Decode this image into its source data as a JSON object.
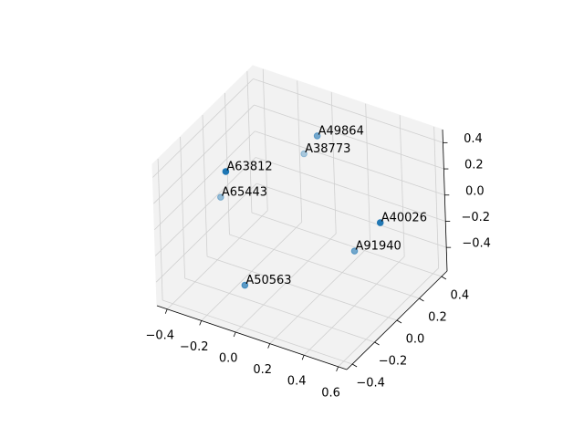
{
  "chart_data": {
    "type": "scatter3d",
    "series": [
      {
        "color": "#1f77b4",
        "labels": [
          "A49864",
          "A38773",
          "A63812",
          "A65443",
          "A40026",
          "A91940",
          "A50563"
        ],
        "x": [
          0.03,
          -0.14,
          -0.15,
          -0.43,
          0.57,
          0.29,
          -0.12
        ],
        "y": [
          0.27,
          0.4,
          -0.27,
          0.09,
          0.0,
          0.18,
          -0.18
        ],
        "z": [
          0.33,
          0.01,
          0.43,
          -0.19,
          0.13,
          -0.36,
          -0.5
        ]
      }
    ],
    "xlim": [
      -0.46,
      0.65
    ],
    "ylim": [
      -0.45,
      0.45
    ],
    "zlim": [
      -0.58,
      0.5
    ],
    "xticks": [
      {
        "value": -0.4,
        "label": "−0.4"
      },
      {
        "value": -0.2,
        "label": "−0.2"
      },
      {
        "value": 0,
        "label": "0.0"
      },
      {
        "value": 0.2,
        "label": "0.2"
      },
      {
        "value": 0.4,
        "label": "0.4"
      },
      {
        "value": 0.6,
        "label": "0.6"
      }
    ],
    "yticks": [
      {
        "value": -0.4,
        "label": "−0.4"
      },
      {
        "value": -0.2,
        "label": "−0.2"
      },
      {
        "value": 0,
        "label": "0.0"
      },
      {
        "value": 0.2,
        "label": "0.2"
      },
      {
        "value": 0.4,
        "label": "0.4"
      }
    ],
    "zticks": [
      {
        "value": -0.4,
        "label": "−0.4"
      },
      {
        "value": -0.2,
        "label": "−0.2"
      },
      {
        "value": 0,
        "label": "0.0"
      },
      {
        "value": 0.2,
        "label": "0.2"
      },
      {
        "value": 0.4,
        "label": "0.4"
      }
    ],
    "grid": true
  }
}
